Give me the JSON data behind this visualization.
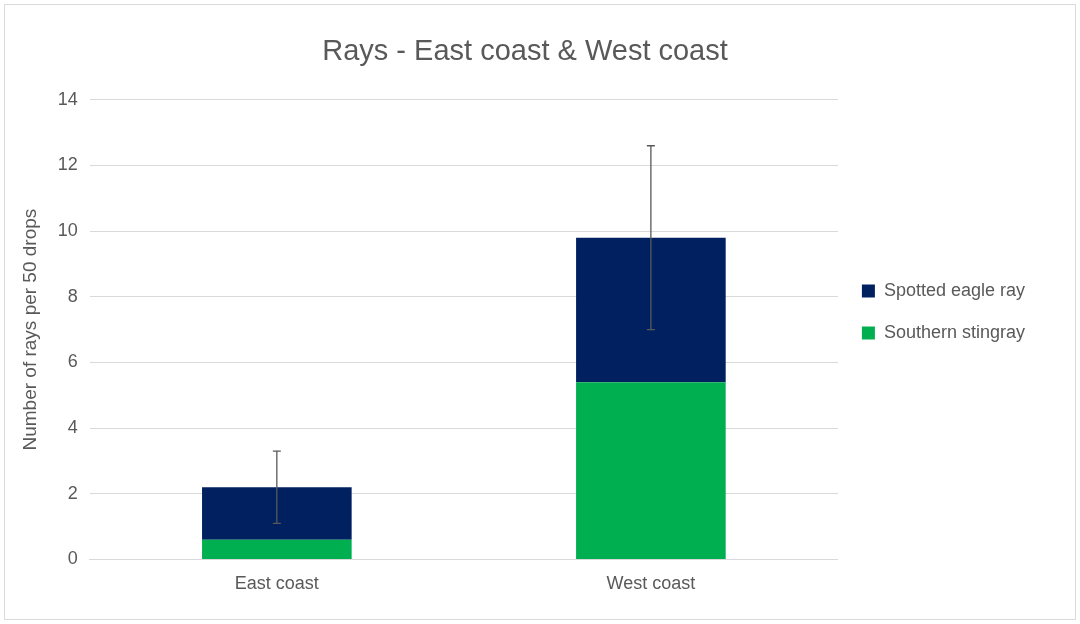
{
  "chart_data": {
    "type": "bar",
    "title": "Rays - East coast & West coast",
    "ylabel": "Number of rays per 50 drops",
    "categories": [
      "East coast",
      "West coast"
    ],
    "stacked": true,
    "series": [
      {
        "name": "Southern stingray",
        "color": "#00b050",
        "values": [
          0.6,
          5.4
        ]
      },
      {
        "name": "Spotted eagle ray",
        "color": "#002060",
        "values": [
          1.6,
          4.4
        ],
        "errors": [
          1.1,
          2.8
        ]
      }
    ],
    "ylim": [
      0,
      14
    ],
    "yticks": [
      0,
      2,
      4,
      6,
      8,
      10,
      12,
      14
    ],
    "grid": "y",
    "legend": "right"
  }
}
